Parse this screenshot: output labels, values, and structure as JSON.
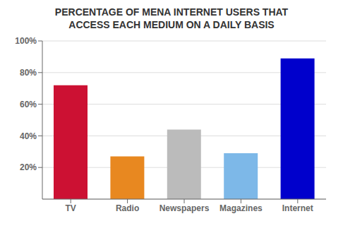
{
  "chart_data": {
    "type": "bar",
    "title": "PERCENTAGE OF MENA INTERNET USERS THAT\nACCESS EACH MEDIUM ON A DAILY BASIS",
    "categories": [
      "TV",
      "Radio",
      "Newspapers",
      "Magazines",
      "Internet"
    ],
    "values": [
      72,
      27,
      44,
      29,
      89
    ],
    "colors": [
      "#CC1133",
      "#E88820",
      "#BBBBBB",
      "#7DB8E8",
      "#0000CC"
    ],
    "ylim": [
      0,
      100
    ],
    "yticks": [
      {
        "value": 20,
        "label": "20%"
      },
      {
        "value": 40,
        "label": "40%"
      },
      {
        "value": 60,
        "label": "60%"
      },
      {
        "value": 80,
        "label": "80%"
      },
      {
        "value": 100,
        "label": "100%"
      }
    ],
    "grid": true
  }
}
